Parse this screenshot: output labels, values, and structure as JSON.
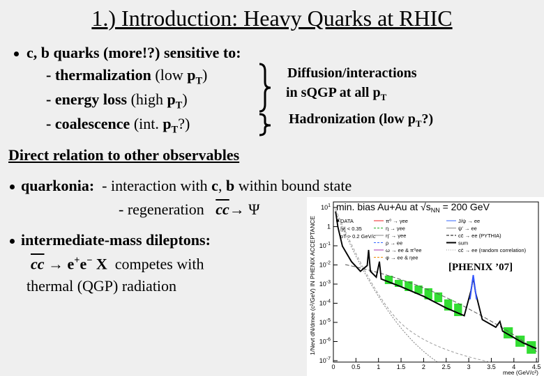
{
  "title": "1.) Introduction: Heavy Quarks at RHIC",
  "bullet1": {
    "head": "c, b quarks (more!?) sensitive to:",
    "items": [
      [
        "- thermalization",
        " (low ",
        "p",
        "T",
        ")"
      ],
      [
        "- energy loss",
        " (high ",
        "p",
        "T",
        ")"
      ],
      [
        "- coalescence",
        " (int. ",
        "p",
        "T",
        "?)"
      ]
    ],
    "notes": [
      [
        "Diffusion/interactions"
      ],
      [
        "in sQGP at all p",
        "T"
      ],
      [
        "Hadronization (low p",
        "T",
        "?)"
      ]
    ]
  },
  "section": "Direct relation to other observables",
  "quarkonia": {
    "head": "quarkonia:",
    "line1": [
      "- interaction with ",
      "c",
      ", ",
      "b",
      " within bound state"
    ],
    "line2": [
      "- regeneration",
      "cc",
      "→ Ψ"
    ]
  },
  "dileptons": {
    "head": "intermediate-mass dileptons:",
    "line1": [
      "cc",
      "→ e",
      "+",
      "e",
      "−",
      " X",
      "  competes with"
    ],
    "line2": "thermal (QGP) radiation"
  },
  "figure": {
    "title": [
      "min. bias Au+Au at ",
      "√s",
      "NN",
      " = 200 GeV"
    ],
    "cuts": [
      "DATA",
      "|y| < 0.35",
      "pT > 0.2 GeV/c"
    ],
    "legend_mid": [
      "π⁰ → γee",
      "η → γee",
      "η' → γee",
      "ρ → ee",
      "ω → ee & π⁰ee",
      "φ → ee & ηee"
    ],
    "legend_right": [
      "J/ψ → ee",
      "ψ' → ee",
      "cc̄ → ee (PYTHIA)",
      "sum",
      "cc̄ → ee (random correlation)"
    ],
    "ylabel": "1/Nevt dN/dmee (c²/GeV) IN PHENIX ACCEPTANCE",
    "xlabel": "mee (GeV/c²)",
    "yticks": [
      [
        "10",
        "1"
      ],
      [
        "1"
      ],
      [
        "10",
        "-1"
      ],
      [
        "10",
        "-2"
      ],
      [
        "10",
        "-3"
      ],
      [
        "10",
        "-4"
      ],
      [
        "10",
        "-5"
      ],
      [
        "10",
        "-6"
      ],
      [
        "10",
        "-7"
      ]
    ],
    "xticks": [
      "0",
      "0.5",
      "1",
      "1.5",
      "2",
      "2.5",
      "3",
      "3.5",
      "4",
      "4.5"
    ],
    "credit": "[PHENIX ’07]"
  }
}
